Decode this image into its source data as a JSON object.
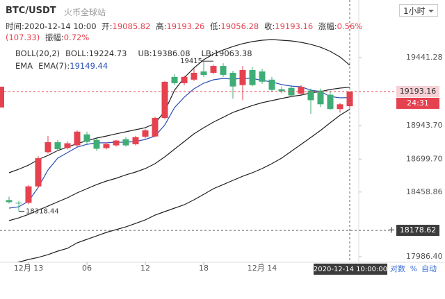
{
  "chart_data": {
    "type": "candlestick",
    "title": "BTC/USDT",
    "subtitle": "火币全球站",
    "interval": "1小时",
    "info": {
      "time_label": "时间:",
      "time": "2020-12-14 10:00",
      "open_label": "开:",
      "high_label": "高:",
      "low_label": "低:",
      "close_label": "收:",
      "change_label": "涨幅:",
      "change": "0.56%(107.33)",
      "amplitude_label": "振幅:",
      "amplitude": "0.72%"
    },
    "categories": [
      null,
      null,
      "12月 13",
      null,
      null,
      null,
      null,
      null,
      "06",
      null,
      null,
      null,
      null,
      null,
      "12",
      null,
      null,
      null,
      null,
      null,
      "18",
      null,
      null,
      null,
      null,
      null,
      "12月 14",
      null,
      null,
      null,
      null,
      null,
      null,
      null,
      null,
      null
    ],
    "open": [
      18400,
      18380,
      18380,
      18500,
      18750,
      18823,
      18780,
      18800,
      18880,
      18840,
      18780,
      18800,
      18845,
      18808,
      18863,
      18865,
      19000,
      19300,
      19254,
      19280,
      19340,
      19330,
      19380,
      19330,
      19240,
      19350,
      19340,
      19280,
      19210,
      19220,
      19178,
      19200,
      19200,
      19170,
      19065,
      19085.82
    ],
    "high": [
      18425,
      18395,
      18510,
      18720,
      18870,
      18840,
      18830,
      18910,
      18900,
      18850,
      18820,
      18840,
      18860,
      18870,
      18920,
      19010,
      19270,
      19320,
      19310,
      19360,
      19415,
      19390,
      19400,
      19345,
      19380,
      19370,
      19360,
      19300,
      19230,
      19240,
      19240,
      19215,
      19215,
      19200,
      19110,
      19193.26
    ],
    "low": [
      18375,
      18318.44,
      18370,
      18490,
      18740,
      18760,
      18770,
      18790,
      18810,
      18760,
      18770,
      18790,
      18790,
      18800,
      18850,
      18860,
      18990,
      19240,
      19240,
      19270,
      19300,
      19320,
      19300,
      19140,
      19130,
      19230,
      19250,
      19190,
      19180,
      19150,
      19170,
      19030,
      19080,
      19060,
      19040,
      19056.28
    ],
    "close": [
      18385,
      18375,
      18500,
      18706,
      18823,
      18772,
      18815,
      18900,
      18825,
      18775,
      18810,
      18835,
      18800,
      18860,
      18910,
      19000,
      19264,
      19254,
      19300,
      19330,
      19314,
      19380,
      19315,
      19230,
      19350,
      19240,
      19265,
      19205,
      19195,
      19165,
      19228,
      19130,
      19100,
      19065,
      19100,
      19193.16
    ],
    "up_color": "#e5414f",
    "down_color": "#3fae76",
    "indicators": [
      {
        "name": "BOLL(20,2)",
        "lines": [
          {
            "name": "BOLL:",
            "color": "#1f1f1f",
            "values": [
              18250,
              18270,
              18295,
              18326,
              18356,
              18387,
              18417,
              18453,
              18483,
              18513,
              18539,
              18559,
              18584,
              18605,
              18630,
              18666,
              18716,
              18772,
              18828,
              18884,
              18929,
              18970,
              19005,
              19041,
              19066,
              19091,
              19112,
              19127,
              19142,
              19157,
              19167,
              19183,
              19193,
              19208,
              19218,
              19224.73
            ]
          },
          {
            "name": "UB:",
            "color": "#1f1f1f",
            "values": [
              18600,
              18625,
              18655,
              18696,
              18726,
              18762,
              18787,
              18813,
              18833,
              18853,
              18868,
              18884,
              18899,
              18914,
              18929,
              18960,
              19051,
              19203,
              19294,
              19365,
              19426,
              19467,
              19497,
              19522,
              19543,
              19558,
              19568,
              19573,
              19568,
              19563,
              19553,
              19538,
              19517,
              19487,
              19446,
              19386.08
            ]
          },
          {
            "name": "LB:",
            "color": "#1f1f1f",
            "values": [
              17925,
              17946,
              17966,
              17981,
              18001,
              18027,
              18047,
              18088,
              18113,
              18138,
              18164,
              18184,
              18204,
              18229,
              18255,
              18290,
              18316,
              18341,
              18366,
              18402,
              18442,
              18483,
              18513,
              18544,
              18574,
              18600,
              18630,
              18666,
              18706,
              18757,
              18807,
              18858,
              18909,
              18965,
              19020,
              19063.38
            ]
          }
        ]
      },
      {
        "name": "EMA",
        "lines": [
          {
            "name": "EMA(7):",
            "color": "#2b4fb5",
            "values": [
              18341,
              18351,
              18392,
              18493,
              18620,
              18706,
              18747,
              18787,
              18807,
              18818,
              18818,
              18823,
              18823,
              18828,
              18843,
              18868,
              18949,
              19076,
              19152,
              19213,
              19254,
              19279,
              19289,
              19284,
              19289,
              19289,
              19274,
              19264,
              19244,
              19233,
              19228,
              19203,
              19193,
              19157,
              19147,
              19149.44
            ]
          }
        ]
      }
    ],
    "ylim": [
      17885,
      19862
    ],
    "yticks": [
      {
        "value": 17986.4,
        "label": "17986.40"
      },
      18458.86,
      {
        "value": 18699.7,
        "label": "18699.70"
      },
      {
        "value": 18943.7,
        "label": "18943.70"
      },
      19441.28
    ],
    "countdown": "24:31",
    "crosshair": {
      "price": 18178.62,
      "time": "2020-12-14 10:00:00"
    },
    "scale_modes": [
      "对数",
      "%",
      "自动"
    ]
  }
}
